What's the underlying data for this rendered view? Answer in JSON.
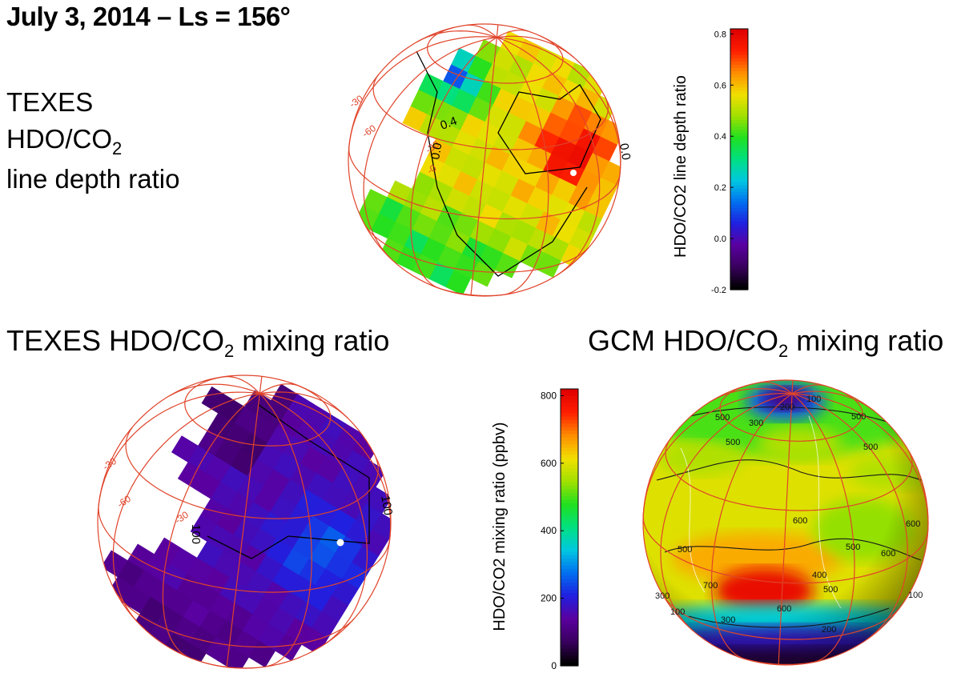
{
  "header": {
    "title": "July 3, 2014 – Ls = 156°",
    "label_line1": "TEXES",
    "label_line2_main": "HDO/CO",
    "label_line2_sub": "2",
    "label_line3": "line  depth ratio"
  },
  "panels": {
    "texes_mix": {
      "title_main": "TEXES HDO/CO",
      "title_sub": "2",
      "title_rest": " mixing ratio"
    },
    "gcm_mix": {
      "title_main": "GCM HDO/CO",
      "title_sub": "2",
      "title_rest": " mixing ratio"
    }
  },
  "colors": {
    "grid": "#e0442a",
    "colormap": [
      "#000000",
      "#3a0060",
      "#5a00a0",
      "#2020e0",
      "#0070f0",
      "#00c8e0",
      "#00e080",
      "#20e020",
      "#a0e000",
      "#f0e000",
      "#ff9000",
      "#ff2000",
      "#e00000"
    ]
  },
  "chart_data": [
    {
      "type": "heatmap",
      "name": "texes-line-depth-ratio-map",
      "colorbar": {
        "label": "HDO/CO2 line depth ratio",
        "ticks": [
          "-0.2",
          "0.0",
          "0.2",
          "0.4",
          "0.6",
          "0.8"
        ],
        "range": [
          -0.2,
          0.82
        ]
      },
      "grid_labels": [
        "-30",
        "-60",
        "-30",
        "-0"
      ],
      "contour_labels": [
        "0.4",
        "0.0",
        "0.0"
      ],
      "regions": [
        {
          "area": "west-limb",
          "value": 0.15
        },
        {
          "area": "center",
          "value": 0.55
        },
        {
          "area": "north-east",
          "value": 0.8
        },
        {
          "area": "south",
          "value": 0.4
        }
      ]
    },
    {
      "type": "heatmap",
      "name": "texes-mixing-ratio-map",
      "grid_labels": [
        "-30",
        "-60",
        "-30"
      ],
      "contour_labels": [
        "100",
        "100"
      ],
      "regions": [
        {
          "area": "north-west",
          "value": 80
        },
        {
          "area": "center",
          "value": 150
        },
        {
          "area": "east",
          "value": 250
        },
        {
          "area": "south",
          "value": 100
        }
      ]
    },
    {
      "type": "heatmap",
      "name": "gcm-mixing-ratio-map",
      "colorbar": {
        "label": "HDO/CO2 mixing ratio (ppbv)",
        "ticks": [
          "0",
          "200",
          "400",
          "600",
          "800"
        ],
        "range": [
          0,
          820
        ]
      },
      "contour_labels": [
        "100",
        "200",
        "300",
        "500",
        "500",
        "500",
        "500",
        "600",
        "600",
        "500",
        "500",
        "600",
        "400",
        "700",
        "600",
        "300",
        "300",
        "500",
        "100",
        "200",
        "100"
      ],
      "regions": [
        {
          "area": "north-pole",
          "value": 100
        },
        {
          "area": "north-mid",
          "value": 500
        },
        {
          "area": "equator",
          "value": 600
        },
        {
          "area": "south-hellas",
          "value": 800
        },
        {
          "area": "south-pole",
          "value": 50
        }
      ]
    }
  ]
}
